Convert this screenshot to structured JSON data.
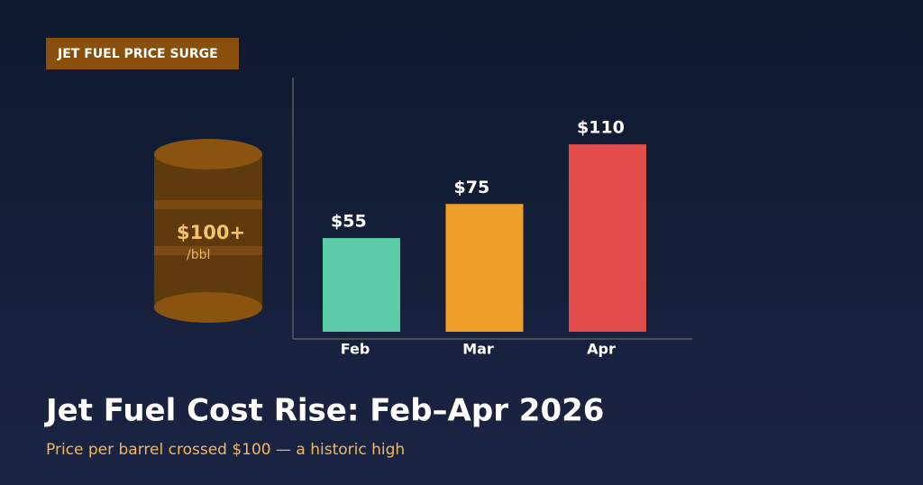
{
  "chart_data": {
    "type": "bar",
    "badge": "JET FUEL PRICE SURGE",
    "annotation": {
      "text": "$100+",
      "unit": "/bbl"
    },
    "title": "Jet Fuel Cost Rise: Feb–Apr 2026",
    "subtitle": "Price per barrel crossed $100 — a historic high",
    "categories": [
      "Feb",
      "Mar",
      "Apr"
    ],
    "values": [
      55,
      75,
      110
    ],
    "value_labels": [
      "$55",
      "$75",
      "$110"
    ],
    "colors": [
      "#5ccba7",
      "#ef9f29",
      "#e24d4c"
    ],
    "ylim": [
      0,
      150
    ]
  }
}
